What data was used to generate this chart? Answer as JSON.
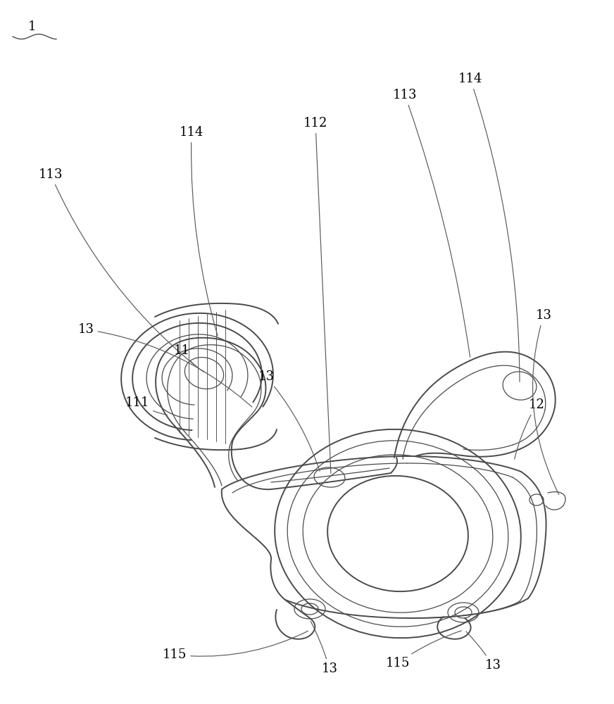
{
  "background_color": "#ffffff",
  "line_color": "#4a4a4a",
  "ann_color": "#5a5a5a",
  "fig_width": 8.72,
  "fig_height": 10.0,
  "dpi": 100,
  "lw_main": 1.4,
  "lw_thin": 0.9,
  "lw_ann": 0.85,
  "font_size": 13
}
